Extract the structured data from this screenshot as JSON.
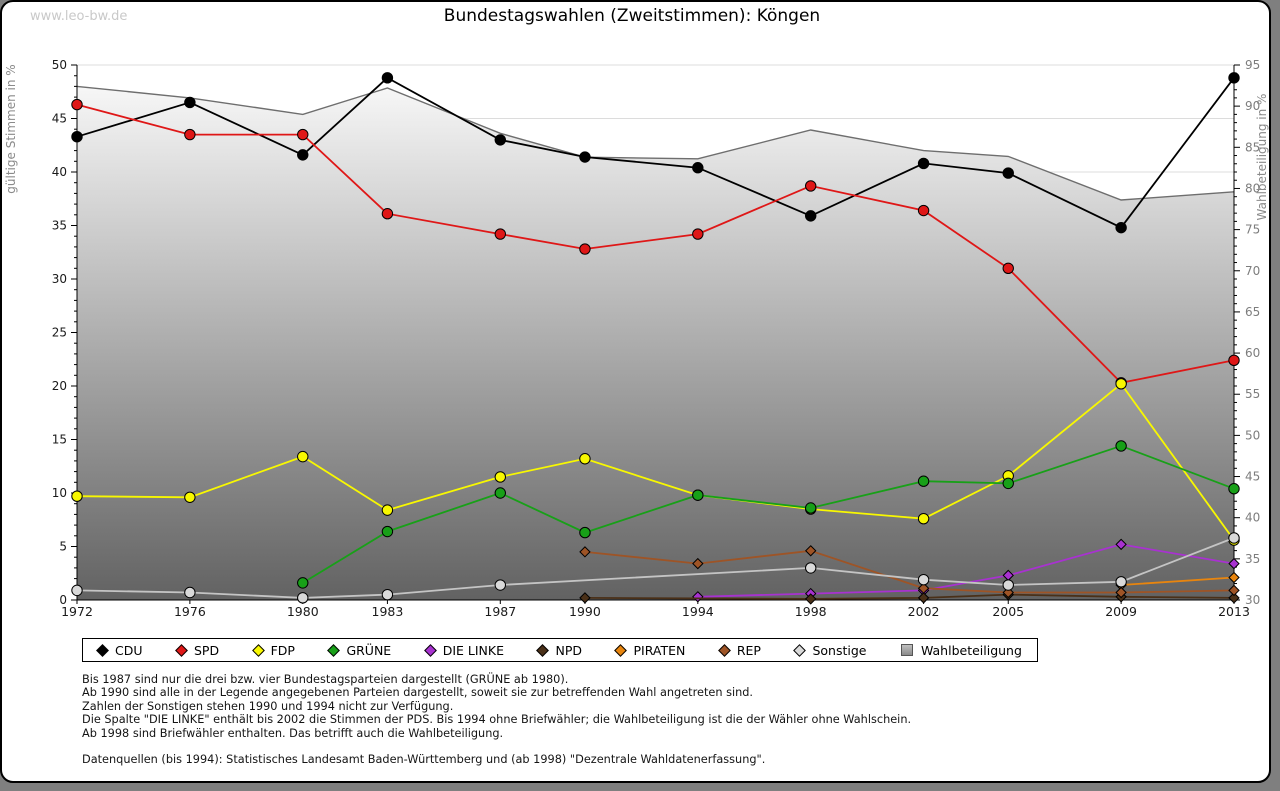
{
  "page": {
    "watermark": "www.leo-bw.de",
    "title": "Bundestagswahlen (Zweitstimmen): Köngen"
  },
  "chart_data": {
    "type": "line",
    "title": "Bundestagswahlen (Zweitstimmen): Köngen",
    "x": [
      1972,
      1976,
      1980,
      1983,
      1987,
      1990,
      1994,
      1998,
      2002,
      2005,
      2009,
      2013
    ],
    "ylabel_left": "gültige Stimmen in %",
    "ylabel_right": "Wahlbeteiligung in %",
    "ylim_left": [
      0,
      50
    ],
    "ylim_right": [
      30,
      95
    ],
    "grid": "horizontal, every 5 %, hidden under turnout area",
    "legend_position": "bottom box",
    "series": [
      {
        "name": "CDU",
        "color": "#000000",
        "axis": "left",
        "marker": "circle",
        "values": [
          43.3,
          46.5,
          41.6,
          48.8,
          43.0,
          41.4,
          40.4,
          35.9,
          40.8,
          39.9,
          34.8,
          48.8
        ]
      },
      {
        "name": "SPD",
        "color": "#df1717",
        "axis": "left",
        "marker": "circle",
        "values": [
          46.3,
          43.5,
          43.5,
          36.1,
          34.2,
          32.8,
          34.2,
          38.7,
          36.4,
          31.0,
          20.3,
          22.4
        ]
      },
      {
        "name": "FDP",
        "color": "#f8f800",
        "axis": "left",
        "marker": "circle",
        "values": [
          9.7,
          9.6,
          13.4,
          8.4,
          11.5,
          13.2,
          9.8,
          8.5,
          7.6,
          11.6,
          20.2,
          5.6
        ]
      },
      {
        "name": "GRÜNE",
        "color": "#18a018",
        "axis": "left",
        "marker": "circle",
        "values": [
          null,
          null,
          1.6,
          6.4,
          10.0,
          6.3,
          9.8,
          8.6,
          11.1,
          10.9,
          14.4,
          10.4
        ]
      },
      {
        "name": "DIE LINKE",
        "color": "#a832d0",
        "axis": "left",
        "marker": "diamond",
        "values": [
          null,
          null,
          null,
          null,
          null,
          null,
          0.3,
          0.6,
          0.9,
          2.3,
          5.2,
          3.4
        ]
      },
      {
        "name": "NPD",
        "color": "#4a3018",
        "axis": "left",
        "marker": "diamond",
        "values": [
          null,
          null,
          null,
          null,
          null,
          0.2,
          null,
          0.1,
          0.2,
          0.5,
          0.3,
          0.2
        ]
      },
      {
        "name": "PIRATEN",
        "color": "#e8850e",
        "axis": "left",
        "marker": "diamond",
        "values": [
          null,
          null,
          null,
          null,
          null,
          null,
          null,
          null,
          null,
          null,
          1.4,
          2.1
        ]
      },
      {
        "name": "REP",
        "color": "#9e5426",
        "axis": "left",
        "marker": "diamond",
        "values": [
          null,
          null,
          null,
          null,
          null,
          4.5,
          3.4,
          4.6,
          1.1,
          0.7,
          0.7,
          0.9
        ]
      },
      {
        "name": "Sonstige",
        "color": "#d9d9d9",
        "line_color": "#c4c4c4",
        "axis": "left",
        "marker": "circle",
        "values": [
          0.9,
          0.7,
          0.2,
          0.5,
          1.4,
          null,
          null,
          3.0,
          1.9,
          1.4,
          1.7,
          5.8
        ]
      },
      {
        "name": "Wahlbeteiligung",
        "color": "#6e6e6e",
        "axis": "right",
        "marker": "none",
        "style": "area-gradient",
        "area_gradient": [
          "#fdfdfd",
          "#626262"
        ],
        "values": [
          92.4,
          91.0,
          89.0,
          92.2,
          86.7,
          83.8,
          83.6,
          87.1,
          84.6,
          83.9,
          78.6,
          79.6
        ]
      }
    ],
    "left_ticks": [
      0,
      5,
      10,
      15,
      20,
      25,
      30,
      35,
      40,
      45,
      50
    ],
    "right_ticks": [
      30,
      35,
      40,
      45,
      50,
      55,
      60,
      65,
      70,
      75,
      80,
      85,
      90,
      95
    ]
  },
  "footnotes": {
    "lines": [
      "Bis 1987 sind nur die drei bzw. vier Bundestagsparteien dargestellt (GRÜNE ab 1980).",
      "Ab 1990 sind alle in der Legende angegebenen Parteien dargestellt, soweit sie zur betreffenden Wahl angetreten sind.",
      "Zahlen der Sonstigen stehen 1990 und 1994 nicht zur Verfügung.",
      "Die Spalte \"DIE LINKE\" enthält bis 2002 die Stimmen der PDS. Bis 1994 ohne Briefwähler; die Wahlbeteiligung ist die der Wähler ohne Wahlschein.",
      "Ab 1998 sind Briefwähler enthalten. Das betrifft auch die Wahlbeteiligung.",
      "",
      "Datenquellen (bis 1994): Statistisches Landesamt Baden-Württemberg und (ab 1998) \"Dezentrale Wahldatenerfassung\"."
    ]
  }
}
